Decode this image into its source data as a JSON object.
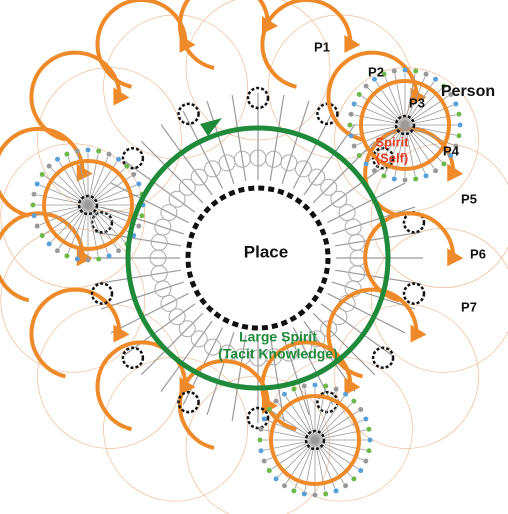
{
  "persons": [
    "P1",
    "P2",
    "P3",
    "P4",
    "P5",
    "P6",
    "P7"
  ],
  "labels": {
    "person": "Person",
    "spirit": [
      "Spirit",
      "(Self)"
    ],
    "place": "Place",
    "large_spirit": [
      "Large Spirit",
      "(Tacit Knowledge)"
    ]
  }
}
